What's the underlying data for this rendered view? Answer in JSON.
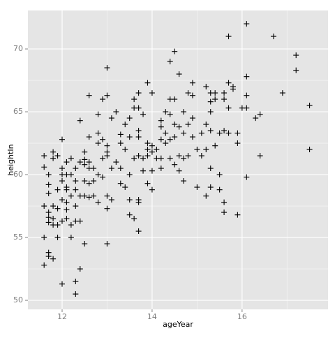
{
  "chart_data": {
    "type": "scatter",
    "x_label": "ageYear",
    "y_label": "heightIn",
    "x": [
      11.6,
      11.6,
      11.6,
      11.6,
      11.6,
      11.7,
      11.7,
      11.7,
      11.7,
      11.7,
      11.7,
      11.7,
      11.7,
      11.8,
      11.8,
      11.8,
      11.8,
      11.8,
      11.8,
      11.9,
      11.9,
      11.9,
      11.9,
      11.9,
      12.0,
      12.0,
      12.0,
      12.0,
      12.0,
      12.0,
      12.0,
      12.1,
      12.1,
      12.1,
      12.1,
      12.1,
      12.1,
      12.1,
      12.2,
      12.2,
      12.2,
      12.2,
      12.2,
      12.3,
      12.3,
      12.3,
      12.3,
      12.3,
      12.3,
      12.3,
      12.4,
      12.4,
      12.4,
      12.4,
      12.4,
      12.5,
      12.5,
      12.5,
      12.5,
      12.5,
      12.5,
      12.6,
      12.6,
      12.6,
      12.6,
      12.6,
      12.6,
      12.7,
      12.7,
      12.7,
      12.8,
      12.8,
      12.8,
      12.8,
      12.8,
      12.9,
      12.9,
      12.9,
      12.9,
      13.0,
      13.0,
      13.0,
      13.0,
      13.0,
      13.0,
      13.0,
      13.0,
      13.1,
      13.1,
      13.1,
      13.2,
      13.2,
      13.3,
      13.3,
      13.3,
      13.3,
      13.4,
      13.4,
      13.4,
      13.5,
      13.5,
      13.5,
      13.5,
      13.5,
      13.6,
      13.6,
      13.6,
      13.6,
      13.7,
      13.7,
      13.7,
      13.7,
      13.7,
      13.7,
      13.7,
      13.7,
      13.8,
      13.8,
      13.8,
      13.9,
      13.9,
      13.9,
      13.9,
      13.9,
      14.0,
      14.0,
      14.0,
      14.0,
      14.0,
      14.1,
      14.1,
      14.2,
      14.2,
      14.2,
      14.2,
      14.2,
      14.3,
      14.3,
      14.3,
      14.4,
      14.4,
      14.4,
      14.4,
      14.4,
      14.5,
      14.5,
      14.5,
      14.5,
      14.5,
      14.6,
      14.6,
      14.6,
      14.6,
      14.7,
      14.7,
      14.7,
      14.7,
      14.8,
      14.8,
      14.8,
      14.9,
      14.9,
      14.9,
      14.9,
      15.0,
      15.0,
      15.1,
      15.1,
      15.2,
      15.2,
      15.2,
      15.2,
      15.3,
      15.3,
      15.3,
      15.3,
      15.3,
      15.3,
      15.4,
      15.4,
      15.4,
      15.5,
      15.5,
      15.5,
      15.6,
      15.6,
      15.6,
      15.6,
      15.6,
      15.7,
      15.7,
      15.7,
      15.7,
      15.8,
      15.8,
      15.9,
      15.9,
      15.9,
      16.0,
      16.1,
      16.1,
      16.1,
      16.1,
      16.1,
      16.3,
      16.4,
      16.4,
      16.7,
      16.9,
      17.2,
      17.2,
      17.5,
      17.5
    ],
    "series": [
      {
        "name": "heightIn",
        "color": "#000000",
        "values": [
          61.5,
          60.6,
          57.5,
          55.0,
          52.8,
          60.0,
          59.2,
          58.5,
          57.0,
          56.2,
          56.6,
          53.8,
          53.5,
          61.8,
          61.3,
          57.5,
          56.0,
          53.3,
          56.5,
          58.8,
          57.3,
          56.0,
          55.0,
          61.5,
          60.5,
          59.5,
          58.0,
          56.3,
          51.3,
          62.8,
          60.0,
          59.0,
          58.8,
          57.8,
          56.5,
          57.2,
          60.0,
          61.0,
          61.3,
          60.0,
          58.3,
          55.0,
          56.0,
          60.5,
          59.5,
          56.3,
          51.5,
          50.5,
          57.5,
          58.8,
          64.3,
          61.0,
          58.3,
          56.3,
          52.5,
          61.8,
          61.2,
          60.8,
          59.5,
          58.3,
          54.5,
          66.3,
          61.0,
          60.5,
          59.3,
          58.2,
          63.0,
          60.5,
          59.5,
          58.3,
          64.8,
          63.3,
          62.5,
          60.0,
          57.8,
          62.8,
          61.3,
          59.8,
          66.0,
          68.5,
          66.3,
          62.3,
          61.8,
          61.5,
          58.3,
          54.5,
          57.3,
          64.5,
          60.5,
          58.0,
          65.0,
          61.0,
          63.2,
          62.5,
          60.5,
          59.3,
          64.0,
          62.0,
          59.0,
          64.5,
          63.0,
          60.0,
          58.0,
          56.8,
          66.0,
          65.3,
          61.3,
          56.5,
          66.5,
          65.3,
          63.5,
          63.0,
          61.5,
          58.0,
          57.8,
          55.5,
          64.8,
          61.3,
          60.3,
          67.3,
          62.5,
          62.0,
          61.5,
          59.3,
          66.5,
          62.3,
          61.8,
          60.3,
          58.8,
          62.0,
          61.3,
          64.3,
          63.8,
          62.8,
          61.3,
          60.5,
          65.0,
          62.5,
          63.3,
          69.0,
          66.0,
          64.8,
          62.8,
          61.3,
          69.8,
          66.0,
          64.0,
          63.0,
          60.8,
          68.0,
          63.8,
          60.3,
          61.5,
          65.0,
          63.3,
          61.3,
          59.5,
          66.5,
          64.0,
          61.5,
          67.3,
          66.3,
          64.5,
          63.0,
          62.0,
          59.0,
          63.3,
          61.5,
          67.0,
          64.0,
          62.0,
          58.3,
          66.5,
          65.8,
          65.0,
          63.5,
          60.5,
          59.0,
          66.5,
          66.0,
          62.3,
          63.3,
          60.0,
          58.8,
          66.5,
          66.0,
          63.5,
          57.8,
          57.0,
          71.0,
          67.3,
          65.3,
          63.3,
          67.0,
          66.8,
          63.3,
          62.5,
          56.8,
          65.3,
          72.0,
          67.8,
          66.3,
          65.3,
          59.8,
          64.5,
          64.8,
          61.5,
          71.0,
          66.5,
          69.5,
          68.3,
          65.5,
          62.0
        ]
      }
    ],
    "xlim": [
      11.24,
      17.91
    ],
    "ylim": [
      49.28,
      73.06
    ],
    "xticks": [
      12,
      14,
      16
    ],
    "yticks": [
      50,
      55,
      60,
      65,
      70
    ],
    "grid": true,
    "marker": "plus"
  }
}
